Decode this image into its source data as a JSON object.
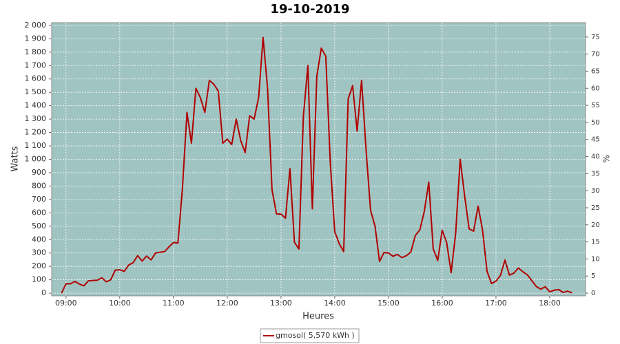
{
  "chart_data": {
    "type": "line",
    "title": "19-10-2019",
    "xlabel": "Heures",
    "ylabel": "Watts",
    "y2label": "%",
    "x": [
      535,
      540,
      545,
      550,
      555,
      560,
      565,
      570,
      575,
      580,
      585,
      590,
      595,
      600,
      605,
      610,
      615,
      620,
      625,
      630,
      635,
      640,
      645,
      650,
      655,
      660,
      665,
      670,
      675,
      680,
      685,
      690,
      695,
      700,
      705,
      710,
      715,
      720,
      725,
      730,
      735,
      740,
      745,
      750,
      755,
      760,
      765,
      770,
      775,
      780,
      785,
      790,
      795,
      800,
      805,
      810,
      815,
      820,
      825,
      830,
      835,
      840,
      845,
      850,
      855,
      860,
      865,
      870,
      875,
      880,
      885,
      890,
      895,
      900,
      905,
      910,
      915,
      920,
      925,
      930,
      935,
      940,
      945,
      950,
      955,
      960,
      965,
      970,
      975,
      980,
      985,
      990,
      995,
      1000,
      1005,
      1010,
      1015,
      1020,
      1025,
      1030,
      1035,
      1040,
      1045,
      1050,
      1055,
      1060,
      1065,
      1070,
      1075,
      1080,
      1085,
      1090,
      1095,
      1100,
      1105
    ],
    "series": [
      {
        "name": "gmosol( 5,570 kWh )",
        "color": "#b00000",
        "values": [
          0,
          70,
          70,
          88,
          68,
          55,
          92,
          95,
          97,
          115,
          85,
          100,
          172,
          175,
          163,
          210,
          228,
          280,
          240,
          277,
          248,
          300,
          306,
          310,
          346,
          378,
          375,
          780,
          1350,
          1120,
          1530,
          1460,
          1350,
          1590,
          1560,
          1510,
          1120,
          1150,
          1110,
          1300,
          1140,
          1050,
          1325,
          1300,
          1460,
          1910,
          1530,
          770,
          592,
          590,
          560,
          930,
          380,
          330,
          1320,
          1700,
          630,
          1620,
          1830,
          1770,
          980,
          460,
          370,
          310,
          1450,
          1550,
          1210,
          1590,
          1070,
          620,
          500,
          237,
          303,
          300,
          275,
          290,
          265,
          280,
          307,
          430,
          472,
          610,
          830,
          330,
          244,
          470,
          377,
          153,
          450,
          1000,
          725,
          480,
          463,
          650,
          470,
          163,
          72,
          90,
          133,
          247,
          135,
          150,
          188,
          160,
          137,
          93,
          50,
          30,
          48,
          10,
          22,
          27,
          5,
          15,
          2
        ]
      }
    ],
    "xlim": [
      524,
      1120
    ],
    "xticks": [
      {
        "value": 540,
        "label": "09:00"
      },
      {
        "value": 600,
        "label": "10:00"
      },
      {
        "value": 660,
        "label": "11:00"
      },
      {
        "value": 720,
        "label": "12:00"
      },
      {
        "value": 780,
        "label": "13:00"
      },
      {
        "value": 840,
        "label": "14:00"
      },
      {
        "value": 900,
        "label": "15:00"
      },
      {
        "value": 960,
        "label": "16:00"
      },
      {
        "value": 1020,
        "label": "17:00"
      },
      {
        "value": 1080,
        "label": "18:00"
      }
    ],
    "ylim": [
      -20,
      2020
    ],
    "yticks": [
      0,
      100,
      200,
      300,
      400,
      500,
      600,
      700,
      800,
      900,
      {
        "value": 1000,
        "label": "1 000"
      },
      {
        "value": 1100,
        "label": "1 100"
      },
      {
        "value": 1200,
        "label": "1 200"
      },
      {
        "value": 1300,
        "label": "1 300"
      },
      {
        "value": 1400,
        "label": "1 400"
      },
      {
        "value": 1500,
        "label": "1 500"
      },
      {
        "value": 1600,
        "label": "1 600"
      },
      {
        "value": 1700,
        "label": "1 700"
      },
      {
        "value": 1800,
        "label": "1 800"
      },
      {
        "value": 1900,
        "label": "1 900"
      },
      {
        "value": 2000,
        "label": "2 000"
      }
    ],
    "y2lim": [
      -0.8,
      79.2
    ],
    "y2ticks": [
      0,
      5,
      10,
      15,
      20,
      25,
      30,
      35,
      40,
      45,
      50,
      55,
      60,
      65,
      70,
      75
    ],
    "grid": true,
    "background": "#a0c4c2",
    "legend": "bottom"
  }
}
